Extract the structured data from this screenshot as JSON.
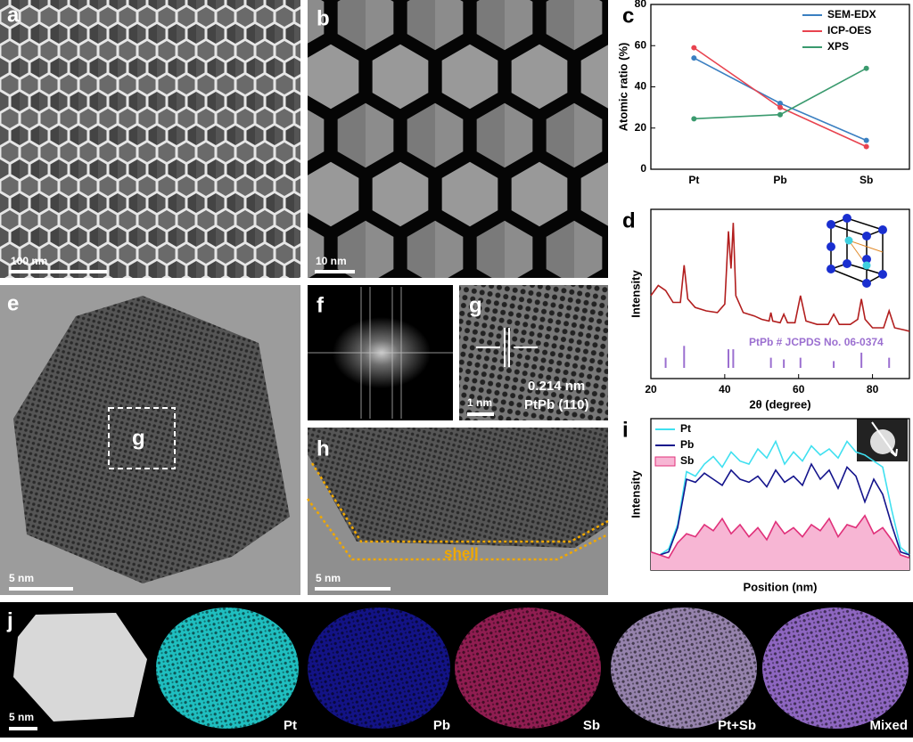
{
  "panels": [
    {
      "label": "a",
      "scale_bar": "100 nm"
    },
    {
      "label": "b",
      "scale_bar": "10 nm"
    },
    {
      "label": "e",
      "scale_bar": "5 nm",
      "box_label": "g"
    },
    {
      "label": "f"
    },
    {
      "label": "g",
      "scale_bar": "1 nm",
      "d_spacing": "0.214 nm",
      "plane": "PtPb (110)"
    },
    {
      "label": "h",
      "scale_bar": "5 nm",
      "annotation": "shell"
    },
    {
      "label": "j",
      "scale_bar": "5 nm",
      "maps": [
        "Pt",
        "Pb",
        "Sb",
        "Pt+Sb",
        "Mixed"
      ]
    }
  ],
  "chart_data": [
    {
      "type": "line",
      "panel_label": "c",
      "ylabel": "Atomic ratio (%)",
      "categories": [
        "Pt",
        "Pb",
        "Sb"
      ],
      "series": [
        {
          "name": "SEM-EDX",
          "color": "#3a7fc1",
          "values": [
            54,
            32,
            14
          ]
        },
        {
          "name": "ICP-OES",
          "color": "#e8434f",
          "values": [
            59,
            30,
            11
          ]
        },
        {
          "name": "XPS",
          "color": "#3a9a6e",
          "values": [
            24.5,
            26.5,
            49
          ]
        }
      ],
      "ylim": [
        0,
        80
      ],
      "yticks": [
        0,
        20,
        40,
        60,
        80
      ],
      "legend": "upper right",
      "markers": true
    },
    {
      "type": "line",
      "panel_label": "d",
      "xlabel": "2θ (degree)",
      "ylabel": "Intensity",
      "x": [
        20,
        22,
        24,
        26,
        28,
        29,
        30,
        32,
        35,
        38,
        40,
        41,
        41.7,
        42.3,
        43,
        45,
        48,
        50,
        52,
        52.5,
        53,
        55,
        56,
        57,
        59,
        60.5,
        62,
        65,
        68,
        69.5,
        71,
        74,
        76,
        77,
        78,
        80,
        83,
        84.5,
        86,
        88,
        90
      ],
      "series": [
        {
          "color": "#b21e1e",
          "values": [
            49,
            55,
            52,
            45,
            45,
            67,
            47,
            42,
            40,
            39,
            44,
            87,
            65,
            92,
            49,
            39,
            37,
            35,
            34,
            39,
            34,
            33,
            38,
            33,
            33,
            49,
            34,
            32,
            32,
            38,
            32,
            32,
            35,
            47,
            35,
            30,
            30,
            40,
            30,
            29,
            28
          ]
        }
      ],
      "reference": {
        "name": "PtPb # JCPDS No. 06-0374",
        "color": "#9b6fd0",
        "x": [
          24,
          29,
          41,
          42.3,
          52.5,
          56,
          60.5,
          69.5,
          77,
          84.5
        ],
        "values": [
          6,
          13,
          11,
          11,
          6,
          5,
          6,
          4,
          9,
          6
        ]
      },
      "xlim": [
        20,
        90
      ],
      "xticks": [
        20,
        40,
        60,
        80
      ],
      "ylim": [
        0,
        100
      ]
    },
    {
      "type": "line",
      "panel_label": "i",
      "xlabel": "Position (nm)",
      "ylabel": "Intensity",
      "series": [
        {
          "name": "Pt",
          "color": "#3fe0f0",
          "values": [
            12,
            10,
            14,
            30,
            65,
            62,
            70,
            75,
            68,
            78,
            72,
            70,
            80,
            74,
            85,
            70,
            78,
            72,
            82,
            76,
            80,
            74,
            85,
            78,
            76,
            72,
            68,
            40,
            15,
            10
          ]
        },
        {
          "name": "Pb",
          "color": "#14148c",
          "values": [
            10,
            10,
            12,
            28,
            60,
            58,
            64,
            60,
            56,
            66,
            60,
            58,
            62,
            55,
            66,
            58,
            62,
            56,
            70,
            60,
            66,
            54,
            68,
            62,
            45,
            60,
            50,
            30,
            12,
            10
          ]
        },
        {
          "name": "Sb",
          "color": "#e0307a",
          "fill": "#f7b6d4",
          "area": true,
          "values": [
            12,
            10,
            8,
            18,
            24,
            22,
            30,
            26,
            34,
            24,
            30,
            22,
            28,
            20,
            32,
            24,
            28,
            22,
            30,
            26,
            34,
            22,
            30,
            28,
            36,
            24,
            28,
            20,
            10,
            8
          ]
        }
      ],
      "ylim": [
        0,
        100
      ],
      "legend": "upper left"
    }
  ]
}
